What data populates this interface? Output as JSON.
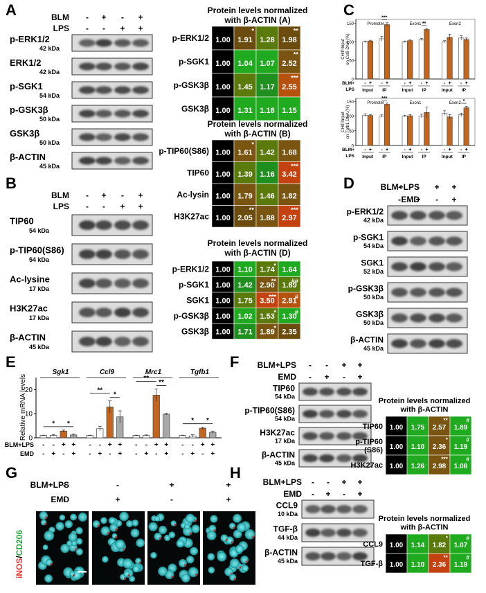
{
  "panel_letters": [
    "A",
    "B",
    "C",
    "D",
    "E",
    "F",
    "G",
    "H"
  ],
  "colors": {
    "black": "#000000",
    "dark_olive": "#6b4c0e",
    "brown_olive": "#7a5512",
    "olive_green": "#5a7a0c",
    "green": "#1f8f1f",
    "bright_green": "#1faa1f",
    "orange_red": "#c4420f",
    "dark_orange": "#b5520d",
    "bar_orange": "#c2651e",
    "bar_gray": "#a8a8a8",
    "bar_white": "#ffffff"
  },
  "panelA": {
    "conditions": [
      {
        "label": "BLM",
        "signs": [
          "-",
          "+",
          "-",
          "+"
        ]
      },
      {
        "label": "LPS",
        "signs": [
          "-",
          "-",
          "+",
          "+"
        ]
      }
    ],
    "blots": [
      {
        "name": "p-ERK1/2",
        "kda": "42 kDa"
      },
      {
        "name": "ERK1/2",
        "kda": "42 kDa"
      },
      {
        "name": "p-SGK1",
        "kda": "54 kDa"
      },
      {
        "name": "p-GSK3β",
        "kda": "50 kDa"
      },
      {
        "name": "GSK3β",
        "kda": "50 kDa"
      },
      {
        "name": "β-ACTIN",
        "kda": "45 kDa"
      }
    ]
  },
  "panelB": {
    "conditions": [
      {
        "label": "BLM",
        "signs": [
          "-",
          "+",
          "-",
          "+"
        ]
      },
      {
        "label": "LPS",
        "signs": [
          "-",
          "-",
          "+",
          "+"
        ]
      }
    ],
    "blots": [
      {
        "name": "TIP60",
        "kda": "54 kDa"
      },
      {
        "name": "p-TIP60(S86)",
        "kda": "54 kDa"
      },
      {
        "name": "Ac-lysine",
        "kda": "17 kDa"
      },
      {
        "name": "H3K27ac",
        "kda": "17 kDa"
      },
      {
        "name": "β-ACTIN",
        "kda": "45 kDa"
      }
    ]
  },
  "panelD": {
    "conditions": [
      {
        "label": "BLM+LPS",
        "signs": [
          "-",
          "-",
          "+",
          "+"
        ]
      },
      {
        "label": "EMD",
        "signs": [
          "-",
          "+",
          "-",
          "+"
        ]
      }
    ],
    "blots": [
      {
        "name": "p-ERK1/2",
        "kda": "42 kDa"
      },
      {
        "name": "p-SGK1",
        "kda": "54 kDa"
      },
      {
        "name": "SGK1",
        "kda": "52 kDa"
      },
      {
        "name": "p-GSK3β",
        "kda": "50 kDa"
      },
      {
        "name": "GSK3β",
        "kda": "50 kDa"
      },
      {
        "name": "β-ACTIN",
        "kda": "45 kDa"
      }
    ]
  },
  "panelF": {
    "conditions": [
      {
        "label": "BLM+LPS",
        "signs": [
          "-",
          "-",
          "+",
          "+"
        ]
      },
      {
        "label": "EMD",
        "signs": [
          "-",
          "+",
          "-",
          "+"
        ]
      }
    ],
    "blots": [
      {
        "name": "TIP60",
        "kda": "54 kDa"
      },
      {
        "name": "p-TIP60(S86)",
        "kda": "54 kDa"
      },
      {
        "name": "H3K27ac",
        "kda": "17 kDa"
      },
      {
        "name": "β-ACTIN",
        "kda": "45 kDa"
      }
    ]
  },
  "panelG": {
    "conditions": [
      {
        "label": "BLM+LPS",
        "signs": [
          "-",
          "-",
          "+",
          "+"
        ]
      },
      {
        "label": "EMD",
        "signs": [
          "-",
          "+",
          "-",
          "+"
        ]
      }
    ],
    "ylabel_parts": [
      "iNOS",
      "/",
      "CD206"
    ]
  },
  "panelH": {
    "conditions": [
      {
        "label": "BLM+LPS",
        "signs": [
          "-",
          "-",
          "+",
          "+"
        ]
      },
      {
        "label": "EMD",
        "signs": [
          "-",
          "+",
          "-",
          "+"
        ]
      }
    ],
    "blots": [
      {
        "name": "CCL9",
        "kda": "10 kDa"
      },
      {
        "name": "TGF-β",
        "kda": "44 kDa"
      },
      {
        "name": "β-ACTIN",
        "kda": "45 kDa"
      }
    ]
  },
  "chart_data": [
    {
      "type": "heatmap",
      "id": "hmA",
      "title": "Protein levels normalized\nwith β-ACTIN (A)",
      "rows": [
        "p-ERK1/2",
        "p-SGK1",
        "p-GSK3β",
        "GSK3β"
      ],
      "values": [
        [
          1.0,
          1.91,
          1.28,
          1.98
        ],
        [
          1.0,
          1.04,
          1.07,
          2.52
        ],
        [
          1.0,
          1.45,
          1.17,
          2.55
        ],
        [
          1.0,
          1.31,
          1.18,
          1.15
        ]
      ],
      "stars": [
        [
          "",
          "*",
          "",
          "**"
        ],
        [
          "",
          "",
          "",
          "**"
        ],
        [
          "",
          "",
          "",
          "***"
        ],
        [
          "",
          "",
          "",
          ""
        ]
      ],
      "colors": [
        [
          "black",
          "dark_olive",
          "olive_green",
          "dark_olive"
        ],
        [
          "black",
          "bright_green",
          "bright_green",
          "brown_olive"
        ],
        [
          "black",
          "olive_green",
          "green",
          "dark_orange"
        ],
        [
          "black",
          "bright_green",
          "bright_green",
          "bright_green"
        ]
      ]
    },
    {
      "type": "heatmap",
      "id": "hmB",
      "title": "Protein levels normalized\nwith β-ACTIN (B)",
      "rows": [
        "p-TIP60(S86)",
        "TIP60",
        "Ac-lysin",
        "H3K27ac"
      ],
      "values": [
        [
          1.0,
          1.61,
          1.42,
          1.68
        ],
        [
          1.0,
          1.39,
          1.16,
          3.42
        ],
        [
          1.0,
          1.79,
          1.46,
          1.82
        ],
        [
          1.0,
          2.05,
          1.88,
          2.97
        ]
      ],
      "stars": [
        [
          "",
          "*",
          "",
          ""
        ],
        [
          "",
          "",
          "",
          "***"
        ],
        [
          "",
          "",
          "",
          ""
        ],
        [
          "",
          "**",
          "",
          "***"
        ]
      ],
      "colors": [
        [
          "black",
          "brown_olive",
          "olive_green",
          "brown_olive"
        ],
        [
          "black",
          "olive_green",
          "green",
          "orange_red"
        ],
        [
          "black",
          "brown_olive",
          "olive_green",
          "brown_olive"
        ],
        [
          "black",
          "dark_olive",
          "brown_olive",
          "orange_red"
        ]
      ]
    },
    {
      "type": "heatmap",
      "id": "hmD",
      "title": "Protein levels normalized\nwith β-ACTIN (D)",
      "rows": [
        "p-ERK1/2",
        "p-SGK1",
        "SGK1",
        "p-GSK3β",
        "GSK3β"
      ],
      "values": [
        [
          1.0,
          1.1,
          1.74,
          1.64
        ],
        [
          1.0,
          1.42,
          2.9,
          1.89
        ],
        [
          1.0,
          1.75,
          3.5,
          2.81
        ],
        [
          1.0,
          1.02,
          1.53,
          1.3
        ],
        [
          1.0,
          1.71,
          1.89,
          2.35
        ]
      ],
      "stars": [
        [
          "",
          "",
          "*",
          ""
        ],
        [
          "",
          "",
          "**",
          "##"
        ],
        [
          "",
          "",
          "***",
          "#"
        ],
        [
          "",
          "",
          "*",
          "#"
        ],
        [
          "",
          "",
          "*",
          ""
        ]
      ],
      "colors": [
        [
          "black",
          "bright_green",
          "olive_green",
          "bright_green"
        ],
        [
          "black",
          "green",
          "brown_olive",
          "olive_green"
        ],
        [
          "black",
          "olive_green",
          "orange_red",
          "dark_orange"
        ],
        [
          "black",
          "bright_green",
          "olive_green",
          "bright_green"
        ],
        [
          "black",
          "green",
          "brown_olive",
          "dark_olive"
        ]
      ]
    },
    {
      "type": "heatmap",
      "id": "hmF",
      "title": "Protein levels normalized\nwith β-ACTIN",
      "rows": [
        "TIP60",
        "p-TIP60\n(S86)",
        "H3K27ac"
      ],
      "values": [
        [
          1.0,
          1.75,
          2.57,
          1.89
        ],
        [
          1.0,
          1.1,
          2.36,
          1.19
        ],
        [
          1.0,
          1.26,
          2.98,
          1.06
        ]
      ],
      "stars": [
        [
          "",
          "",
          "**",
          "#"
        ],
        [
          "",
          "",
          "*",
          "#"
        ],
        [
          "",
          "",
          "***",
          "#"
        ]
      ],
      "colors": [
        [
          "black",
          "bright_green",
          "brown_olive",
          "bright_green"
        ],
        [
          "black",
          "bright_green",
          "brown_olive",
          "bright_green"
        ],
        [
          "black",
          "bright_green",
          "brown_olive",
          "bright_green"
        ]
      ]
    },
    {
      "type": "heatmap",
      "id": "hmH",
      "title": "Protein levels normalized\nwith β-ACTIN",
      "rows": [
        "CCL9",
        "TGF-β"
      ],
      "values": [
        [
          1.0,
          1.14,
          1.82,
          1.07
        ],
        [
          1.0,
          1.1,
          2.36,
          1.19
        ]
      ],
      "stars": [
        [
          "",
          "",
          "*",
          "#"
        ],
        [
          "",
          "",
          "**",
          "#"
        ]
      ],
      "colors": [
        [
          "black",
          "bright_green",
          "olive_green",
          "bright_green"
        ],
        [
          "black",
          "bright_green",
          "orange_red",
          "bright_green"
        ]
      ]
    },
    {
      "type": "bar",
      "id": "chipTop",
      "ylabel": "CHIP/Input\non Ccl9 DNA (%)",
      "ylim": [
        0,
        160
      ],
      "yticks": [
        0,
        50,
        100,
        150
      ],
      "groups": [
        "Promoter",
        "Exon1",
        "Exon2"
      ],
      "xgroup_labels": [
        "Input",
        "IP"
      ],
      "row1_label": "BLM+\nLPS",
      "bars": [
        [
          100,
          102
        ],
        [
          108,
          146
        ],
        [
          100,
          103
        ],
        [
          106,
          133
        ],
        [
          100,
          112
        ],
        [
          110,
          106
        ]
      ],
      "errors": [
        [
          2,
          2
        ],
        [
          6,
          5
        ],
        [
          2,
          2
        ],
        [
          3,
          3
        ],
        [
          3,
          8
        ],
        [
          6,
          4
        ]
      ],
      "sig": [
        {
          "group": 0,
          "text": "***"
        },
        {
          "group": 1,
          "text": "**"
        }
      ]
    },
    {
      "type": "bar",
      "id": "chipBottom",
      "ylabel": "CHIP/Input\non Tgfb1 DNA (%)",
      "ylim": [
        0,
        160
      ],
      "yticks": [
        0,
        50,
        100,
        150
      ],
      "groups": [
        "Promoter",
        "Exon1",
        "Exon2"
      ],
      "xgroup_labels": [
        "Input",
        "IP"
      ],
      "row1_label": "BLM+\nLPS",
      "bars": [
        [
          103,
          102
        ],
        [
          100,
          140
        ],
        [
          100,
          101
        ],
        [
          100,
          112
        ],
        [
          110,
          97
        ],
        [
          104,
          128
        ]
      ],
      "errors": [
        [
          5,
          3
        ],
        [
          4,
          4
        ],
        [
          3,
          4
        ],
        [
          6,
          18
        ],
        [
          8,
          8
        ],
        [
          6,
          5
        ]
      ],
      "sig": [
        {
          "group": 0,
          "text": "***"
        },
        {
          "group": 2,
          "text": "*"
        }
      ]
    },
    {
      "type": "bar",
      "id": "mrna",
      "ylabel": "Relative mRNA levels",
      "ylim": [
        0,
        25
      ],
      "yticks": [
        0,
        10,
        20
      ],
      "genes": [
        "Sgk1",
        "Ccl9",
        "Mrc1",
        "Tgfb1"
      ],
      "values": [
        [
          1.0,
          1.0,
          2.8,
          1.2
        ],
        [
          1.0,
          3.8,
          12.8,
          8.7
        ],
        [
          1.0,
          1.0,
          17.7,
          9.8
        ],
        [
          1.0,
          0.8,
          4.0,
          2.3
        ]
      ],
      "errors": [
        [
          0.1,
          0.3,
          0.4,
          0.4
        ],
        [
          0.1,
          1.0,
          2.5,
          2.5
        ],
        [
          0.1,
          0.2,
          2.6,
          0.3
        ],
        [
          0.1,
          0.5,
          0.4,
          0.5
        ]
      ],
      "sig": [
        [
          {
            "a": 0,
            "b": 2,
            "t": "*"
          },
          {
            "a": 2,
            "b": 3,
            "t": "*"
          }
        ],
        [
          {
            "a": 0,
            "b": 2,
            "t": "**"
          },
          {
            "a": 2,
            "b": 3,
            "t": "*"
          }
        ],
        [
          {
            "a": 0,
            "b": 2,
            "t": "**"
          },
          {
            "a": 2,
            "b": 3,
            "t": "**"
          }
        ],
        [
          {
            "a": 0,
            "b": 2,
            "t": "*"
          },
          {
            "a": 2,
            "b": 3,
            "t": "*"
          }
        ]
      ],
      "row_labels": [
        "BLM+LPS",
        "EMD"
      ],
      "signs": [
        [
          "-",
          "-",
          "+",
          "+"
        ],
        [
          "-",
          "+",
          "-",
          "+"
        ]
      ]
    }
  ]
}
